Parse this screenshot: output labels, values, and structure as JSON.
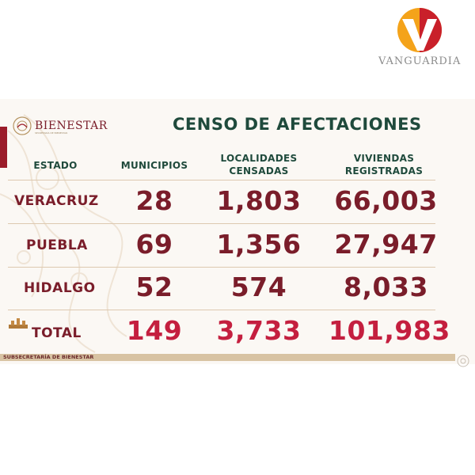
{
  "watermark": {
    "brand": "VANGUARDIA",
    "colors": {
      "orange": "#f4a31a",
      "red": "#c9202a"
    }
  },
  "slide": {
    "logo_name": "BIENESTAR",
    "logo_subtitle": "SECRETARÍA DE BIENESTAR",
    "title": "CENSO DE AFECTACIONES",
    "headers": {
      "estado": "ESTADO",
      "municipios": "MUNICIPIOS",
      "localidades_1": "LOCALIDADES",
      "localidades_2": "CENSADAS",
      "viviendas_1": "VIVIENDAS",
      "viviendas_2": "REGISTRADAS"
    },
    "rows": [
      {
        "estado": "VERACRUZ",
        "municipios": "28",
        "localidades": "1,803",
        "viviendas": "66,003"
      },
      {
        "estado": "PUEBLA",
        "municipios": "69",
        "localidades": "1,356",
        "viviendas": "27,947"
      },
      {
        "estado": "HIDALGO",
        "municipios": "52",
        "localidades": "574",
        "viviendas": "8,033"
      }
    ],
    "total": {
      "label": "TOTAL",
      "municipios": "149",
      "localidades": "3,733",
      "viviendas": "101,983"
    },
    "footer": "SUBSECRETARÍA DE BIENESTAR",
    "colors": {
      "maroon": "#7a1d2a",
      "green": "#1f4a3c",
      "total_red": "#c41f3f",
      "beige": "#d8c3a3"
    }
  }
}
